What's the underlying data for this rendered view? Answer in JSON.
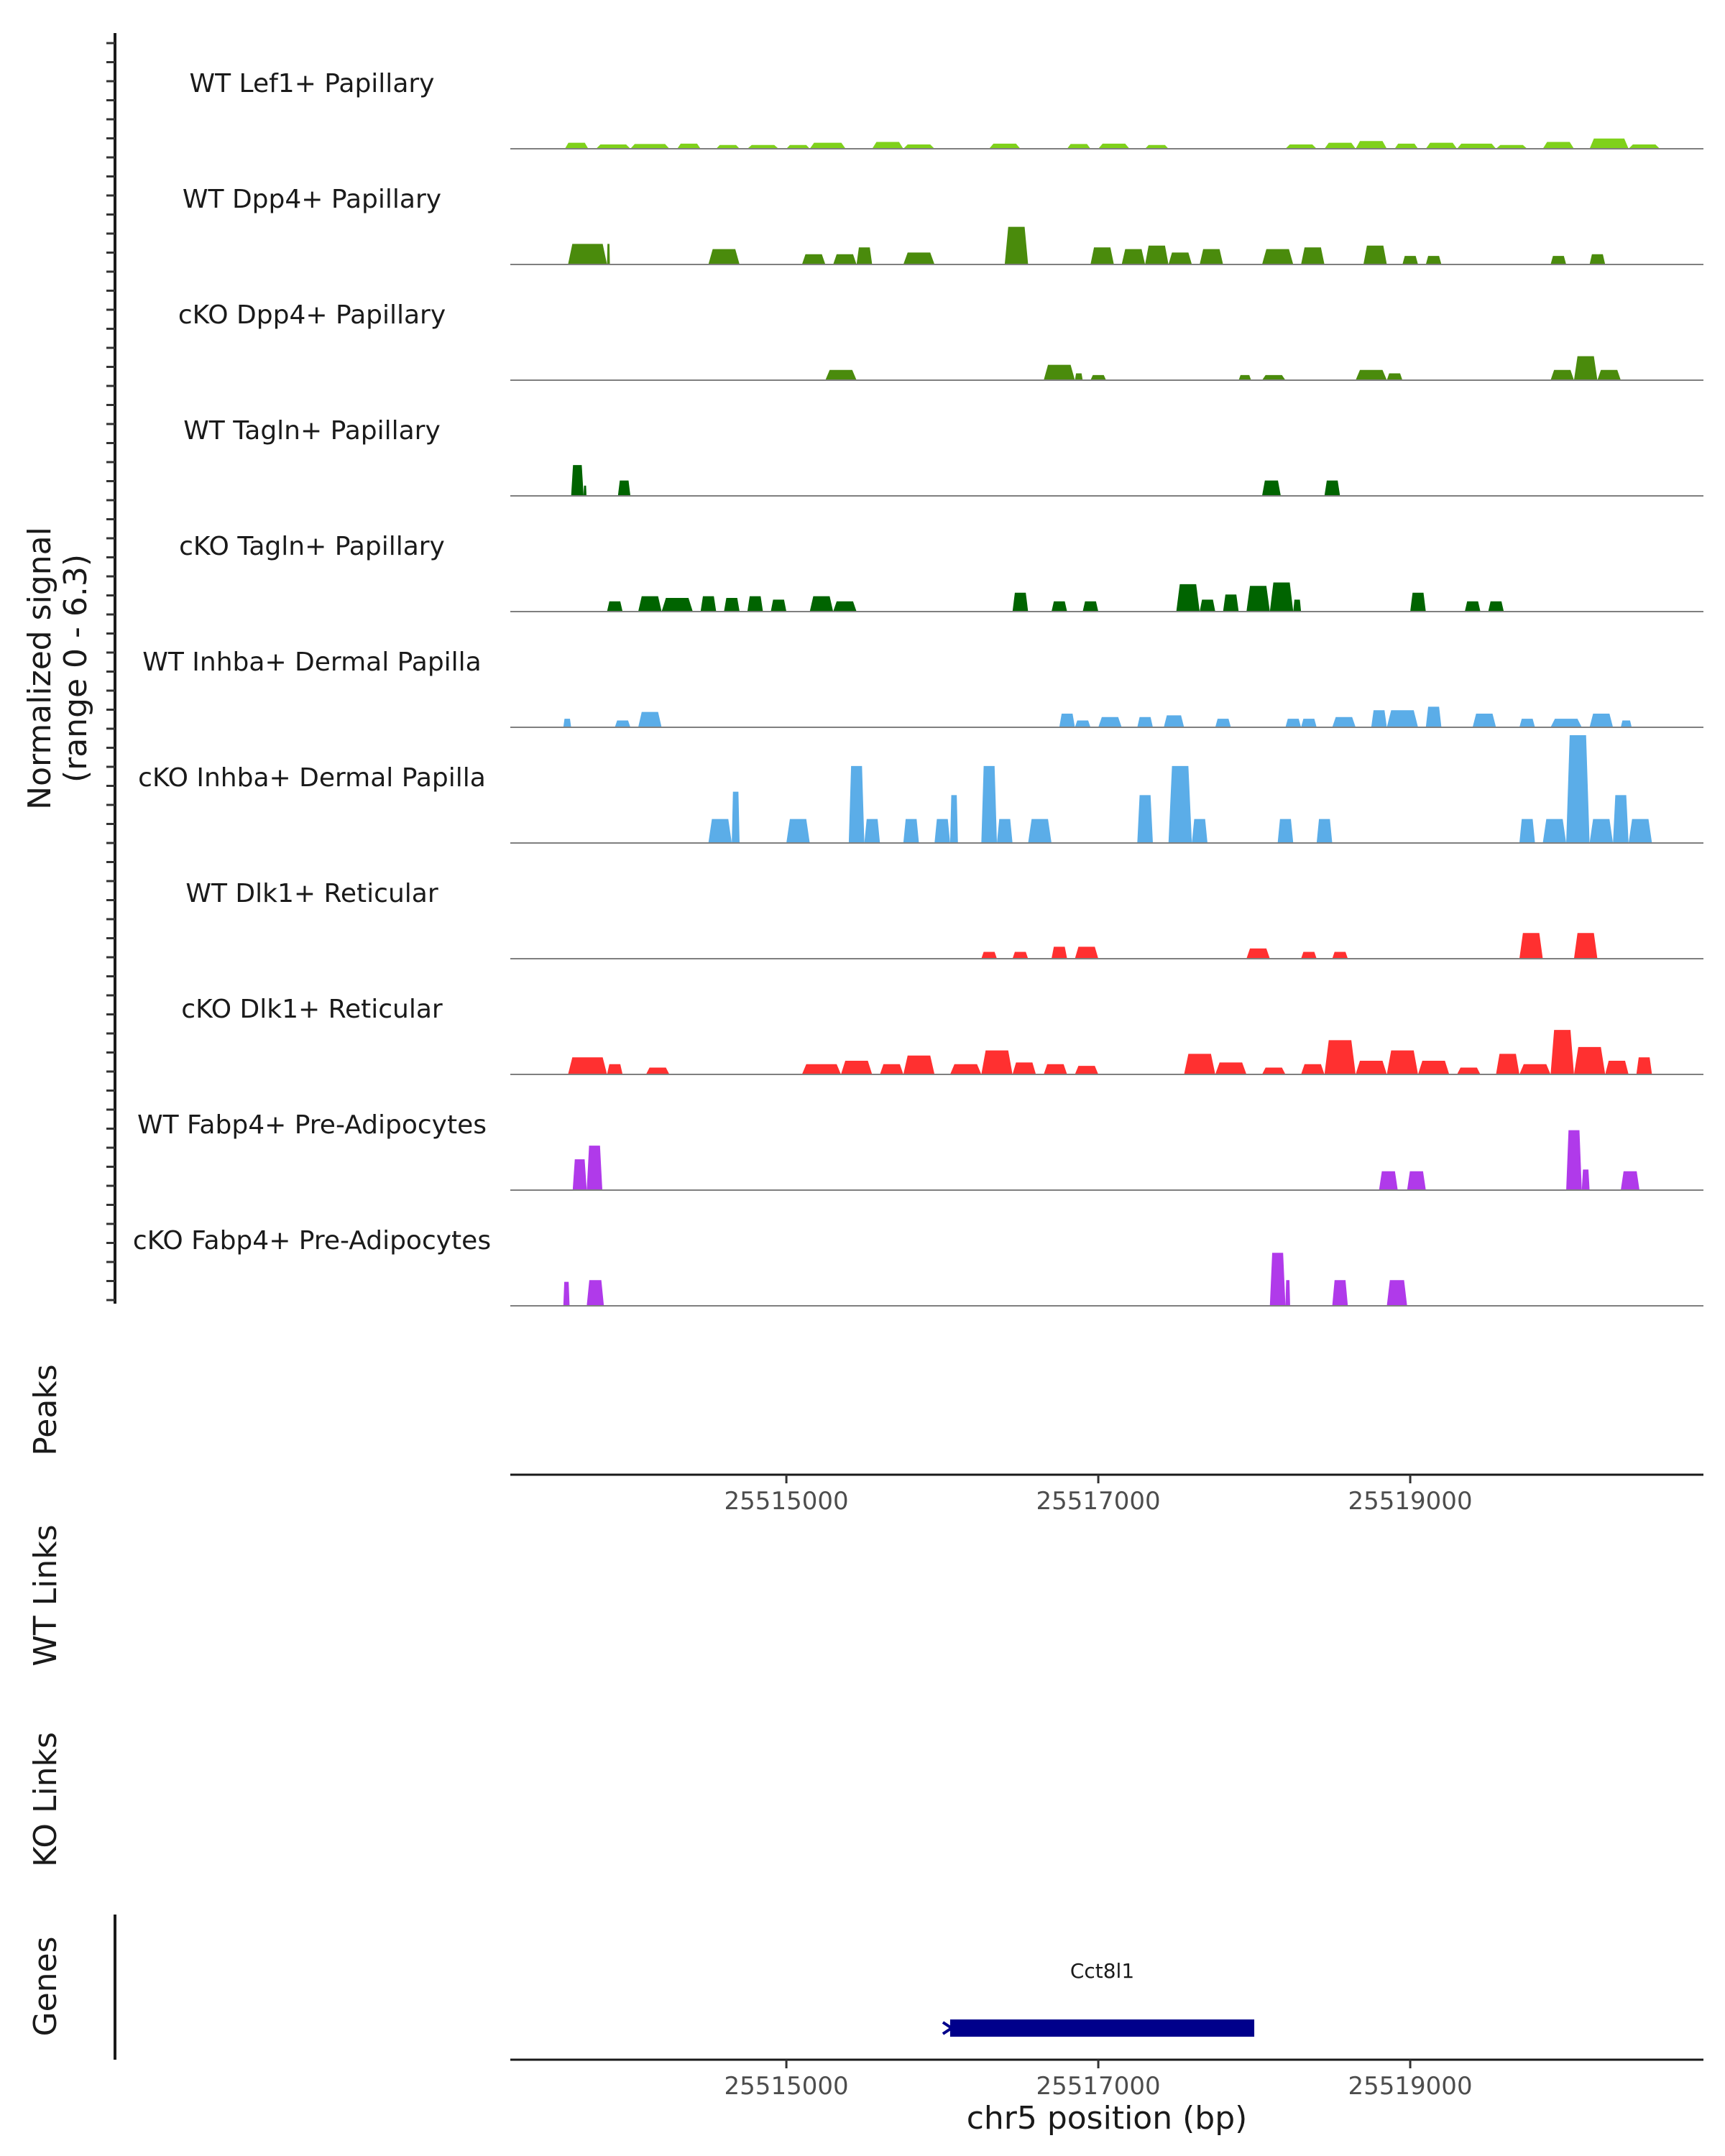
{
  "chart_data": {
    "type": "area",
    "title": "",
    "signal_ylabel": "Normalized signal",
    "signal_range_label": "(range 0 - 6.3)",
    "ylim": [
      0,
      6.3
    ],
    "xlim": [
      25513230,
      25520880
    ],
    "xlabel": "chr5 position (bp)",
    "xticks": [
      25515000,
      25517000,
      25519000
    ],
    "xtick_labels": [
      "25515000",
      "25517000",
      "25519000"
    ],
    "panel_labels": {
      "peaks": "Peaks",
      "wt_links": "WT Links",
      "ko_links": "KO Links",
      "genes": "Genes"
    },
    "tracks": [
      {
        "name": "WT Lef1+ Papillary",
        "color": "#7FD11B",
        "segments": [
          [
            25513580,
            25513730,
            0.35
          ],
          [
            25513780,
            25514000,
            0.25
          ],
          [
            25514000,
            25514250,
            0.28
          ],
          [
            25514300,
            25514450,
            0.3
          ],
          [
            25514550,
            25514700,
            0.22
          ],
          [
            25514750,
            25514950,
            0.22
          ],
          [
            25515000,
            25515150,
            0.22
          ],
          [
            25515150,
            25515380,
            0.35
          ],
          [
            25515550,
            25515750,
            0.4
          ],
          [
            25515750,
            25515950,
            0.25
          ],
          [
            25516300,
            25516500,
            0.3
          ],
          [
            25516800,
            25516950,
            0.28
          ],
          [
            25517000,
            25517200,
            0.3
          ],
          [
            25517300,
            25517450,
            0.22
          ],
          [
            25518200,
            25518400,
            0.25
          ],
          [
            25518450,
            25518650,
            0.35
          ],
          [
            25518650,
            25518850,
            0.45
          ],
          [
            25518900,
            25519050,
            0.3
          ],
          [
            25519100,
            25519300,
            0.35
          ],
          [
            25519300,
            25519550,
            0.3
          ],
          [
            25519550,
            25519750,
            0.22
          ],
          [
            25519850,
            25520050,
            0.4
          ],
          [
            25520150,
            25520400,
            0.6
          ],
          [
            25520400,
            25520600,
            0.25
          ]
        ]
      },
      {
        "name": "WT Dpp4+ Papillary",
        "color": "#4A8B0C",
        "segments": [
          [
            25513600,
            25513850,
            1.2
          ],
          [
            25513850,
            25513850,
            1.2
          ],
          [
            25514500,
            25514700,
            0.9
          ],
          [
            25515100,
            25515250,
            0.6
          ],
          [
            25515300,
            25515450,
            0.6
          ],
          [
            25515450,
            25515550,
            1.0
          ],
          [
            25515750,
            25515950,
            0.7
          ],
          [
            25516400,
            25516550,
            2.2
          ],
          [
            25516950,
            25517100,
            1.0
          ],
          [
            25517150,
            25517300,
            0.9
          ],
          [
            25517300,
            25517450,
            1.1
          ],
          [
            25517450,
            25517600,
            0.7
          ],
          [
            25517650,
            25517800,
            0.9
          ],
          [
            25518050,
            25518250,
            0.9
          ],
          [
            25518300,
            25518450,
            1.0
          ],
          [
            25518700,
            25518850,
            1.1
          ],
          [
            25518950,
            25519050,
            0.5
          ],
          [
            25519100,
            25519200,
            0.5
          ],
          [
            25519900,
            25520000,
            0.5
          ],
          [
            25520150,
            25520250,
            0.6
          ]
        ]
      },
      {
        "name": "cKO Dpp4+ Papillary",
        "color": "#4A8B0C",
        "segments": [
          [
            25515250,
            25515450,
            0.6
          ],
          [
            25516650,
            25516850,
            0.9
          ],
          [
            25516850,
            25516900,
            0.4
          ],
          [
            25516950,
            25517050,
            0.3
          ],
          [
            25517900,
            25517980,
            0.3
          ],
          [
            25518050,
            25518200,
            0.3
          ],
          [
            25518650,
            25518850,
            0.6
          ],
          [
            25518850,
            25518950,
            0.4
          ],
          [
            25519900,
            25520050,
            0.6
          ],
          [
            25520050,
            25520200,
            1.4
          ],
          [
            25520200,
            25520350,
            0.6
          ]
        ]
      },
      {
        "name": "WT Tagln+ Papillary",
        "color": "#006400",
        "segments": [
          [
            25513620,
            25513700,
            1.8
          ],
          [
            25513700,
            25513700,
            0.6
          ],
          [
            25513920,
            25514000,
            0.9
          ],
          [
            25518050,
            25518170,
            0.9
          ],
          [
            25518450,
            25518550,
            0.9
          ]
        ]
      },
      {
        "name": "cKO Tagln+ Papillary",
        "color": "#006400",
        "segments": [
          [
            25513850,
            25513950,
            0.6
          ],
          [
            25514050,
            25514200,
            0.9
          ],
          [
            25514200,
            25514400,
            0.8
          ],
          [
            25514450,
            25514550,
            0.9
          ],
          [
            25514600,
            25514700,
            0.8
          ],
          [
            25514750,
            25514850,
            0.9
          ],
          [
            25514900,
            25515000,
            0.7
          ],
          [
            25515150,
            25515300,
            0.9
          ],
          [
            25515300,
            25515450,
            0.6
          ],
          [
            25516450,
            25516550,
            1.1
          ],
          [
            25516700,
            25516800,
            0.6
          ],
          [
            25516900,
            25517000,
            0.6
          ],
          [
            25517500,
            25517650,
            1.6
          ],
          [
            25517650,
            25517750,
            0.7
          ],
          [
            25517800,
            25517900,
            1.0
          ],
          [
            25517950,
            25518100,
            1.5
          ],
          [
            25518100,
            25518250,
            1.7
          ],
          [
            25518250,
            25518300,
            0.7
          ],
          [
            25519000,
            25519100,
            1.1
          ],
          [
            25519350,
            25519450,
            0.6
          ],
          [
            25519500,
            25519600,
            0.6
          ]
        ]
      },
      {
        "name": "WT Inhba+ Dermal Papilla",
        "color": "#5BADE8",
        "segments": [
          [
            25513570,
            25513620,
            0.5
          ],
          [
            25513900,
            25514000,
            0.4
          ],
          [
            25514050,
            25514200,
            0.9
          ],
          [
            25516750,
            25516850,
            0.8
          ],
          [
            25516850,
            25516950,
            0.4
          ],
          [
            25517000,
            25517150,
            0.6
          ],
          [
            25517250,
            25517350,
            0.6
          ],
          [
            25517420,
            25517550,
            0.7
          ],
          [
            25517750,
            25517850,
            0.5
          ],
          [
            25518200,
            25518300,
            0.5
          ],
          [
            25518300,
            25518400,
            0.5
          ],
          [
            25518500,
            25518650,
            0.6
          ],
          [
            25518750,
            25518850,
            1.0
          ],
          [
            25518850,
            25519050,
            1.0
          ],
          [
            25519100,
            25519200,
            1.2
          ],
          [
            25519400,
            25519550,
            0.8
          ],
          [
            25519700,
            25519800,
            0.5
          ],
          [
            25519900,
            25520100,
            0.5
          ],
          [
            25520150,
            25520300,
            0.8
          ],
          [
            25520350,
            25520420,
            0.4
          ]
        ]
      },
      {
        "name": "cKO Inhba+ Dermal Papilla",
        "color": "#5BADE8",
        "segments": [
          [
            25514500,
            25514650,
            1.4
          ],
          [
            25514650,
            25514700,
            3.0
          ],
          [
            25515000,
            25515150,
            1.4
          ],
          [
            25515400,
            25515500,
            4.5
          ],
          [
            25515500,
            25515600,
            1.4
          ],
          [
            25515750,
            25515850,
            1.4
          ],
          [
            25515950,
            25516050,
            1.4
          ],
          [
            25516050,
            25516100,
            2.8
          ],
          [
            25516250,
            25516350,
            4.5
          ],
          [
            25516350,
            25516450,
            1.4
          ],
          [
            25516550,
            25516700,
            1.4
          ],
          [
            25517250,
            25517350,
            2.8
          ],
          [
            25517450,
            25517600,
            4.5
          ],
          [
            25517600,
            25517700,
            1.4
          ],
          [
            25518150,
            25518250,
            1.4
          ],
          [
            25518400,
            25518500,
            1.4
          ],
          [
            25519700,
            25519800,
            1.4
          ],
          [
            25519850,
            25520000,
            1.4
          ],
          [
            25520000,
            25520150,
            6.3
          ],
          [
            25520150,
            25520300,
            1.4
          ],
          [
            25520300,
            25520400,
            2.8
          ],
          [
            25520400,
            25520550,
            1.4
          ]
        ]
      },
      {
        "name": "WT Dlk1+ Reticular",
        "color": "#FF3030",
        "segments": [
          [
            25516250,
            25516350,
            0.4
          ],
          [
            25516450,
            25516550,
            0.4
          ],
          [
            25516700,
            25516800,
            0.7
          ],
          [
            25516850,
            25517000,
            0.7
          ],
          [
            25517950,
            25518100,
            0.6
          ],
          [
            25518300,
            25518400,
            0.4
          ],
          [
            25518500,
            25518600,
            0.4
          ],
          [
            25519700,
            25519850,
            1.5
          ],
          [
            25520050,
            25520200,
            1.5
          ]
        ]
      },
      {
        "name": "cKO Dlk1+ Reticular",
        "color": "#FF3030",
        "segments": [
          [
            25513600,
            25513850,
            1.0
          ],
          [
            25513850,
            25513950,
            0.6
          ],
          [
            25514100,
            25514250,
            0.4
          ],
          [
            25515100,
            25515350,
            0.6
          ],
          [
            25515350,
            25515550,
            0.8
          ],
          [
            25515600,
            25515750,
            0.6
          ],
          [
            25515750,
            25515950,
            1.1
          ],
          [
            25516050,
            25516250,
            0.6
          ],
          [
            25516250,
            25516450,
            1.4
          ],
          [
            25516450,
            25516600,
            0.7
          ],
          [
            25516650,
            25516800,
            0.6
          ],
          [
            25516850,
            25517000,
            0.5
          ],
          [
            25517550,
            25517750,
            1.2
          ],
          [
            25517750,
            25517950,
            0.7
          ],
          [
            25518050,
            25518200,
            0.4
          ],
          [
            25518300,
            25518450,
            0.6
          ],
          [
            25518450,
            25518650,
            2.0
          ],
          [
            25518650,
            25518850,
            0.8
          ],
          [
            25518850,
            25519050,
            1.4
          ],
          [
            25519050,
            25519250,
            0.8
          ],
          [
            25519300,
            25519450,
            0.4
          ],
          [
            25519550,
            25519700,
            1.2
          ],
          [
            25519700,
            25519900,
            0.6
          ],
          [
            25519900,
            25520050,
            2.6
          ],
          [
            25520050,
            25520250,
            1.6
          ],
          [
            25520250,
            25520400,
            0.8
          ],
          [
            25520450,
            25520550,
            1.0
          ]
        ]
      },
      {
        "name": "WT Fabp4+ Pre-Adipocytes",
        "color": "#B03AEA",
        "segments": [
          [
            25513630,
            25513720,
            1.8
          ],
          [
            25513720,
            25513820,
            2.6
          ],
          [
            25518800,
            25518920,
            1.1
          ],
          [
            25518980,
            25519100,
            1.1
          ],
          [
            25520000,
            25520100,
            3.5
          ],
          [
            25520100,
            25520150,
            1.2
          ],
          [
            25520350,
            25520470,
            1.1
          ]
        ]
      },
      {
        "name": "cKO Fabp4+ Pre-Adipocytes",
        "color": "#B03AEA",
        "segments": [
          [
            25513570,
            25513610,
            1.4
          ],
          [
            25513720,
            25513830,
            1.5
          ],
          [
            25518100,
            25518200,
            3.1
          ],
          [
            25518200,
            25518230,
            1.5
          ],
          [
            25518500,
            25518600,
            1.5
          ],
          [
            25518850,
            25518980,
            1.5
          ]
        ]
      }
    ],
    "genes": [
      {
        "name": "Cct8l1",
        "start": 25516050,
        "end": 25518000,
        "strand": "-",
        "color": "#00008B"
      }
    ]
  }
}
